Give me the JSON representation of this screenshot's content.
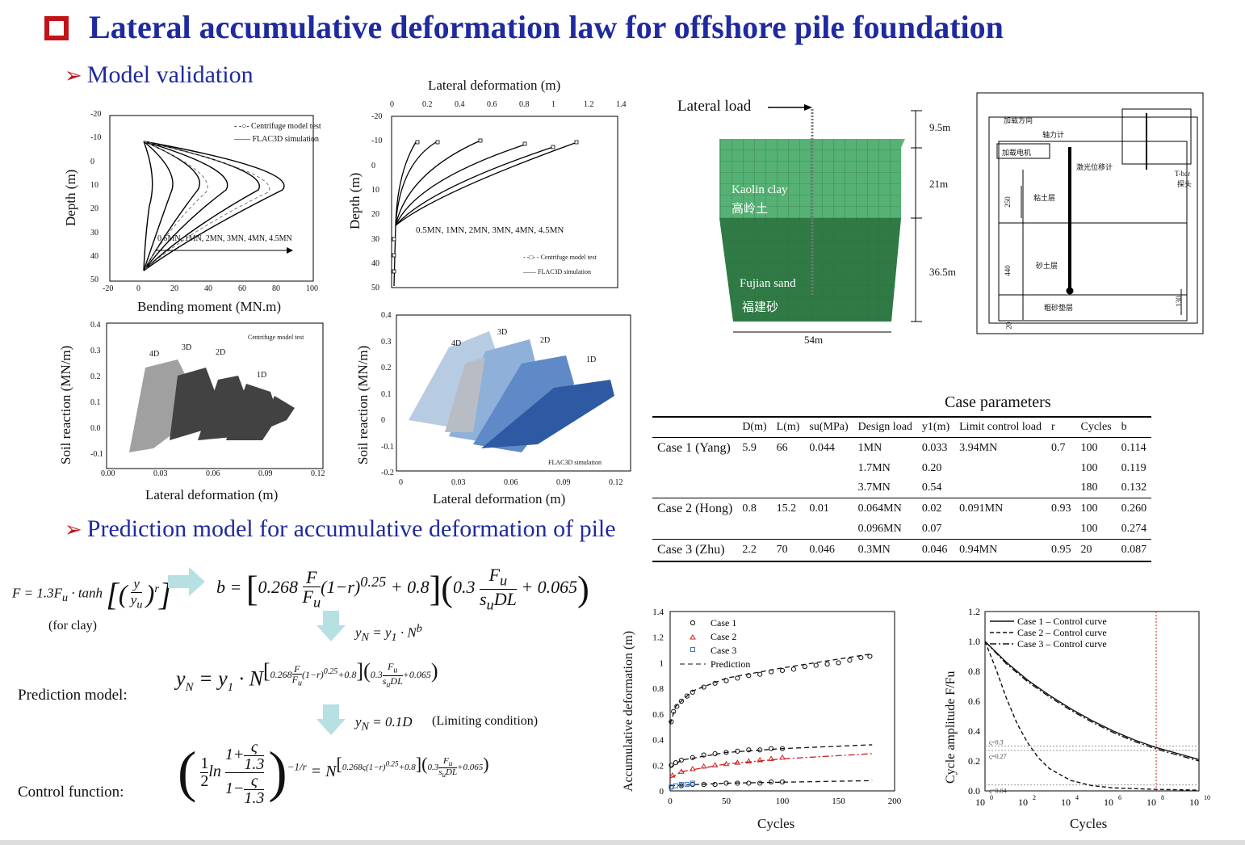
{
  "header": {
    "title": "Lateral accumulative deformation law for offshore pile foundation",
    "section_1": "Model validation",
    "section_2": "Prediction model for accumulative deformation of pile"
  },
  "fig_bending": {
    "xlabel": "Bending moment (MN.m)",
    "ylabel": "Depth (m)",
    "legend_test": "Centrifuge model test",
    "legend_sim": "FLAC3D simulation",
    "loads_label": "0.5MN, 1MN, 2MN, 3MN, 4MN, 4.5MN",
    "x_ticks": [
      "-20",
      "0",
      "20",
      "40",
      "60",
      "80",
      "100"
    ],
    "y_ticks": [
      "-20",
      "-10",
      "0",
      "10",
      "20",
      "30",
      "40",
      "50"
    ]
  },
  "fig_deformation": {
    "xlabel": "Lateral deformation (m)",
    "ylabel": "Depth (m)",
    "legend_test": "Centrifuge model test",
    "legend_sim": "FLAC3D simulation",
    "loads_label": "0.5MN, 1MN, 2MN, 3MN, 4MN, 4.5MN",
    "x_ticks": [
      "0",
      "0.2",
      "0.4",
      "0.6",
      "0.8",
      "1",
      "1.2",
      "1.4"
    ],
    "y_ticks": [
      "-20",
      "-10",
      "0",
      "10",
      "20",
      "30",
      "40",
      "50"
    ]
  },
  "fig_reaction_test": {
    "xlabel": "Lateral deformation (m)",
    "ylabel": "Soil reaction (MN/m)",
    "legend": "Centrifuge model test",
    "labels": [
      "4D",
      "3D",
      "2D",
      "1D"
    ],
    "x_ticks": [
      "0.00",
      "0.03",
      "0.06",
      "0.09",
      "0.12"
    ],
    "y_ticks": [
      "0.4",
      "0.3",
      "0.2",
      "0.1",
      "0.0",
      "-0.1"
    ]
  },
  "fig_reaction_sim": {
    "xlabel": "Lateral deformation (m)",
    "ylabel": "Soil reaction (MN/m)",
    "legend": "FLAC3D simulation",
    "labels": [
      "4D",
      "3D",
      "2D",
      "1D"
    ],
    "x_ticks": [
      "0",
      "0.03",
      "0.06",
      "0.09",
      "0.12"
    ],
    "y_ticks": [
      "0.4",
      "0.3",
      "0.2",
      "0.1",
      "0",
      "-0.1",
      "-0.2"
    ]
  },
  "model_3d": {
    "lateral_load": "Lateral load",
    "clay": "Kaolin clay",
    "clay_cn": "高岭土",
    "sand": "Fujian sand",
    "sand_cn": "福建砂",
    "dims": [
      "9.5m",
      "21m",
      "36.5m"
    ],
    "width": "54m"
  },
  "apparatus": {
    "labels": [
      "加载方向",
      "轴力计",
      "加载电机",
      "激光位移计",
      "T-bar",
      "探头",
      "粘土层",
      "砂土层",
      "粗砂垫层"
    ],
    "dims": [
      "250",
      "440",
      "20",
      "130"
    ]
  },
  "case_table": {
    "title": "Case parameters",
    "headers": [
      "D(m)",
      "L(m)",
      "su(MPa)",
      "Design load",
      "y1(m)",
      "Limit control load",
      "r",
      "Cycles",
      "b"
    ],
    "rows": [
      {
        "case": "Case 1 (Yang)",
        "D": "5.9",
        "L": "66",
        "su": "0.044",
        "design": "1MN",
        "y1": "0.033",
        "limit": "3.94MN",
        "r": "0.7",
        "cycles": "100",
        "b": "0.114"
      },
      {
        "case": "",
        "D": "",
        "L": "",
        "su": "",
        "design": "1.7MN",
        "y1": "0.20",
        "limit": "",
        "r": "",
        "cycles": "100",
        "b": "0.119"
      },
      {
        "case": "",
        "D": "",
        "L": "",
        "su": "",
        "design": "3.7MN",
        "y1": "0.54",
        "limit": "",
        "r": "",
        "cycles": "180",
        "b": "0.132"
      },
      {
        "case": "Case 2 (Hong)",
        "D": "0.8",
        "L": "15.2",
        "su": "0.01",
        "design": "0.064MN",
        "y1": "0.02",
        "limit": "0.091MN",
        "r": "0.93",
        "cycles": "100",
        "b": "0.260"
      },
      {
        "case": "",
        "D": "",
        "L": "",
        "su": "",
        "design": "0.096MN",
        "y1": "0.07",
        "limit": "",
        "r": "",
        "cycles": "100",
        "b": "0.274"
      },
      {
        "case": "Case 3 (Zhu)",
        "D": "2.2",
        "L": "70",
        "su": "0.046",
        "design": "0.3MN",
        "y1": "0.046",
        "limit": "0.94MN",
        "r": "0.95",
        "cycles": "20",
        "b": "0.087"
      }
    ]
  },
  "formulas": {
    "for_clay": "(for clay)",
    "prediction_label": "Prediction model:",
    "control_label": "Control function:",
    "limiting": "(Limiting condition)"
  },
  "chart_data": [
    {
      "type": "scatter",
      "xlabel": "Cycles",
      "ylabel": "Accumulative deformation (m)",
      "xlim": [
        0,
        200
      ],
      "ylim": [
        0,
        1.4
      ],
      "x_ticks": [
        "0",
        "50",
        "100",
        "150",
        "200"
      ],
      "y_ticks": [
        "0",
        "0.2",
        "0.4",
        "0.6",
        "0.8",
        "1",
        "1.2",
        "1.4"
      ],
      "legend": [
        "Case 1",
        "Case 2",
        "Case 3",
        "Prediction"
      ],
      "series": [
        {
          "name": "Case 1",
          "color": "#111111",
          "x": [
            1,
            3,
            6,
            10,
            15,
            20,
            30,
            40,
            50,
            60,
            70,
            80,
            90,
            100,
            110,
            120,
            130,
            140,
            150,
            160,
            170,
            178
          ],
          "y": [
            0.54,
            0.62,
            0.66,
            0.7,
            0.74,
            0.77,
            0.81,
            0.84,
            0.86,
            0.88,
            0.9,
            0.91,
            0.93,
            0.94,
            0.95,
            0.97,
            0.98,
            0.99,
            1.0,
            1.02,
            1.04,
            1.05
          ]
        },
        {
          "name": "Case 1",
          "color": "#111111",
          "x": [
            1,
            5,
            10,
            20,
            30,
            40,
            50,
            60,
            70,
            80,
            90,
            100
          ],
          "y": [
            0.2,
            0.22,
            0.24,
            0.26,
            0.28,
            0.29,
            0.3,
            0.31,
            0.32,
            0.32,
            0.33,
            0.33
          ]
        },
        {
          "name": "Case 1",
          "color": "#111111",
          "x": [
            1,
            10,
            20,
            30,
            40,
            50,
            60,
            70,
            80,
            90,
            100
          ],
          "y": [
            0.03,
            0.04,
            0.05,
            0.05,
            0.05,
            0.06,
            0.06,
            0.06,
            0.06,
            0.07,
            0.07
          ]
        },
        {
          "name": "Case 2",
          "color": "#cc1f1f",
          "x": [
            2,
            10,
            20,
            30,
            40,
            50,
            60,
            70,
            80,
            90,
            100
          ],
          "y": [
            0.12,
            0.15,
            0.17,
            0.19,
            0.2,
            0.21,
            0.22,
            0.23,
            0.24,
            0.25,
            0.26
          ]
        },
        {
          "name": "Case 3",
          "color": "#3a74c4",
          "x": [
            1,
            5,
            10,
            15,
            20
          ],
          "y": [
            0.03,
            0.04,
            0.05,
            0.05,
            0.06
          ]
        }
      ],
      "prediction_lines": [
        {
          "style": "dash",
          "color": "#111111",
          "x": [
            0,
            5,
            20,
            50,
            100,
            180
          ],
          "y": [
            0.52,
            0.66,
            0.78,
            0.88,
            0.96,
            1.07
          ]
        },
        {
          "style": "dash",
          "color": "#111111",
          "x": [
            0,
            10,
            50,
            100,
            180
          ],
          "y": [
            0.18,
            0.24,
            0.3,
            0.33,
            0.36
          ]
        },
        {
          "style": "dashdot",
          "color": "#cc1f1f",
          "x": [
            0,
            10,
            50,
            100,
            180
          ],
          "y": [
            0.1,
            0.15,
            0.21,
            0.25,
            0.29
          ]
        },
        {
          "style": "dash",
          "color": "#111111",
          "x": [
            0,
            50,
            180
          ],
          "y": [
            0.04,
            0.06,
            0.08
          ]
        }
      ]
    },
    {
      "type": "line",
      "xlabel": "Cycles",
      "ylabel": "Cycle amplitude F/Fu",
      "x_scale": "log",
      "xlim": [
        "10^0",
        "10^10"
      ],
      "ylim": [
        0,
        1.2
      ],
      "x_ticks": [
        "10",
        "10",
        "10",
        "10",
        "10",
        "10"
      ],
      "x_tick_exps": [
        "0",
        "2",
        "4",
        "6",
        "8",
        "10"
      ],
      "y_ticks": [
        "0.0",
        "0.2",
        "0.4",
        "0.6",
        "0.8",
        "1.0",
        "1.2"
      ],
      "annotations": [
        "ς=0.3",
        "ς=0.27",
        "ς=0.04"
      ],
      "series": [
        {
          "name": "Case 1 – Control curve",
          "style": "solid",
          "logx": [
            0,
            1,
            2,
            3,
            4,
            5,
            6,
            7,
            8,
            9,
            10
          ],
          "y": [
            1.0,
            0.86,
            0.74,
            0.64,
            0.55,
            0.47,
            0.4,
            0.34,
            0.29,
            0.25,
            0.21
          ]
        },
        {
          "name": "Case 2 – Control curve",
          "style": "dash",
          "logx": [
            0,
            0.5,
            1,
            1.5,
            2,
            2.5,
            3,
            4,
            5,
            6,
            8,
            10
          ],
          "y": [
            1.0,
            0.82,
            0.62,
            0.45,
            0.32,
            0.22,
            0.15,
            0.07,
            0.035,
            0.02,
            0.01,
            0.005
          ]
        },
        {
          "name": "Case 3 – Control curve",
          "style": "dashdot",
          "logx": [
            0,
            1,
            2,
            3,
            4,
            5,
            6,
            7,
            8,
            9,
            10
          ],
          "y": [
            1.0,
            0.85,
            0.73,
            0.63,
            0.54,
            0.46,
            0.39,
            0.33,
            0.28,
            0.24,
            0.2
          ]
        }
      ]
    }
  ]
}
